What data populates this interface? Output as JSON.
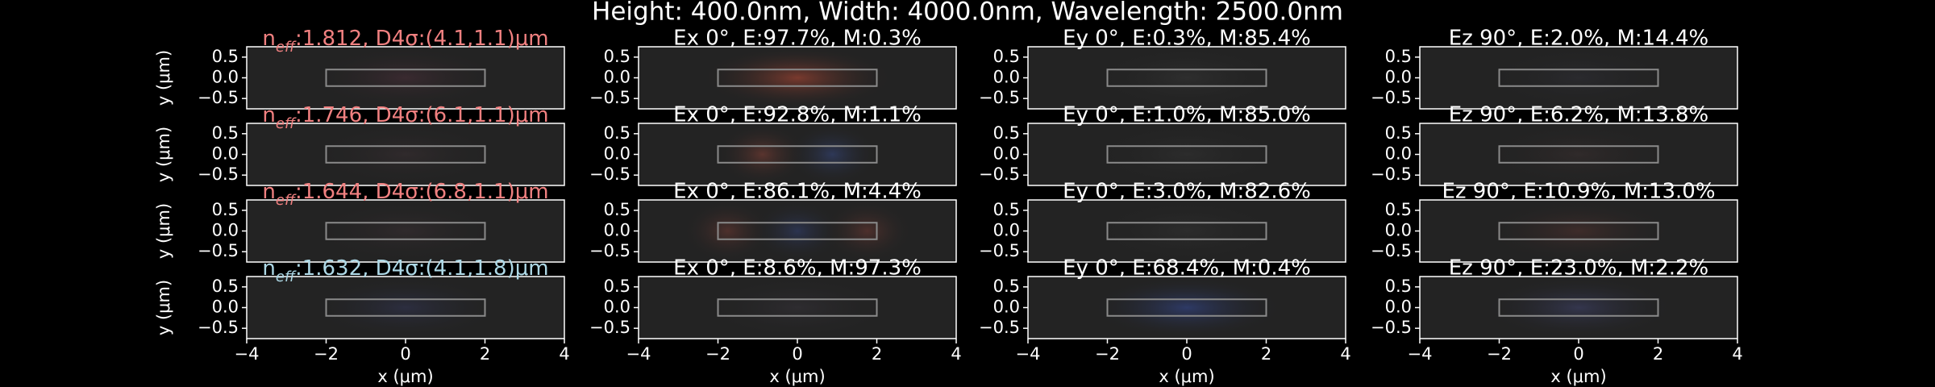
{
  "suptitle": "Height: 400.0nm, Width: 4000.0nm, Wavelength: 2500.0nm",
  "chart_data": [
    {
      "type": "heatmap",
      "title": {
        "base": "n",
        "sub": "eff",
        "text": ":1.812, D4σ:(4.1,1.1)μm"
      },
      "title_color": "#f08080",
      "ylabel": "y (μm)",
      "field": [
        "#3a2a30"
      ],
      "xlim": [
        -4,
        4
      ],
      "ylim": [
        -0.75,
        0.75
      ],
      "yticks": [
        0.5,
        {
          "value": 0,
          "label": "0.0"
        },
        {
          "value": -0.5,
          "label": "−0.5"
        }
      ],
      "waveguide": {
        "x": [
          -2,
          2
        ],
        "y": [
          -0.2,
          0.2
        ]
      }
    },
    {
      "type": "heatmap",
      "title": "Ex 0°, E:97.7%, M:0.3%",
      "title_color": "#ffffff",
      "field": [
        "#7a3a2e"
      ],
      "xlim": [
        -4,
        4
      ],
      "ylim": [
        -0.75,
        0.75
      ],
      "yticks": [
        0.5,
        {
          "value": 0,
          "label": "0.0"
        },
        {
          "value": -0.5,
          "label": "−0.5"
        }
      ],
      "waveguide": {
        "x": [
          -2,
          2
        ],
        "y": [
          -0.2,
          0.2
        ]
      }
    },
    {
      "type": "heatmap",
      "title": "Ey 0°, E:0.3%, M:85.4%",
      "title_color": "#ffffff",
      "field": [
        "#2e2e2e"
      ],
      "xlim": [
        -4,
        4
      ],
      "ylim": [
        -0.75,
        0.75
      ],
      "yticks": [
        0.5,
        {
          "value": 0,
          "label": "0.0"
        },
        {
          "value": -0.5,
          "label": "−0.5"
        }
      ],
      "waveguide": {
        "x": [
          -2,
          2
        ],
        "y": [
          -0.2,
          0.2
        ]
      }
    },
    {
      "type": "heatmap",
      "title": "Ez 90°, E:2.0%, M:14.4%",
      "title_color": "#ffffff",
      "field": [
        "#2a2a2e"
      ],
      "xlim": [
        -4,
        4
      ],
      "ylim": [
        -0.75,
        0.75
      ],
      "yticks": [
        0.5,
        {
          "value": 0,
          "label": "0.0"
        },
        {
          "value": -0.5,
          "label": "−0.5"
        }
      ],
      "waveguide": {
        "x": [
          -2,
          2
        ],
        "y": [
          -0.2,
          0.2
        ]
      }
    },
    {
      "type": "heatmap",
      "title": {
        "base": "n",
        "sub": "eff",
        "text": ":1.746, D4σ:(6.1,1.1)μm"
      },
      "title_color": "#f08080",
      "ylabel": "y (μm)",
      "field": [
        "#302a2c"
      ],
      "xlim": [
        -4,
        4
      ],
      "ylim": [
        -0.75,
        0.75
      ],
      "yticks": [
        0.5,
        {
          "value": 0,
          "label": "0.0"
        },
        {
          "value": -0.5,
          "label": "−0.5"
        }
      ],
      "waveguide": {
        "x": [
          -2,
          2
        ],
        "y": [
          -0.2,
          0.2
        ]
      }
    },
    {
      "type": "heatmap",
      "title": "Ex 0°, E:92.8%, M:1.1%",
      "title_color": "#ffffff",
      "field": [
        "#5a342e",
        "#2e3858"
      ],
      "xlim": [
        -4,
        4
      ],
      "ylim": [
        -0.75,
        0.75
      ],
      "yticks": [
        0.5,
        {
          "value": 0,
          "label": "0.0"
        },
        {
          "value": -0.5,
          "label": "−0.5"
        }
      ],
      "waveguide": {
        "x": [
          -2,
          2
        ],
        "y": [
          -0.2,
          0.2
        ]
      }
    },
    {
      "type": "heatmap",
      "title": "Ey 0°, E:1.0%, M:85.0%",
      "title_color": "#ffffff",
      "field": [
        "#2c2c2c"
      ],
      "xlim": [
        -4,
        4
      ],
      "ylim": [
        -0.75,
        0.75
      ],
      "yticks": [
        0.5,
        {
          "value": 0,
          "label": "0.0"
        },
        {
          "value": -0.5,
          "label": "−0.5"
        }
      ],
      "waveguide": {
        "x": [
          -2,
          2
        ],
        "y": [
          -0.2,
          0.2
        ]
      }
    },
    {
      "type": "heatmap",
      "title": "Ez 90°, E:6.2%, M:13.8%",
      "title_color": "#ffffff",
      "field": [
        "#302a2a"
      ],
      "xlim": [
        -4,
        4
      ],
      "ylim": [
        -0.75,
        0.75
      ],
      "yticks": [
        0.5,
        {
          "value": 0,
          "label": "0.0"
        },
        {
          "value": -0.5,
          "label": "−0.5"
        }
      ],
      "waveguide": {
        "x": [
          -2,
          2
        ],
        "y": [
          -0.2,
          0.2
        ]
      }
    },
    {
      "type": "heatmap",
      "title": {
        "base": "n",
        "sub": "eff",
        "text": ":1.644, D4σ:(6.8,1.1)μm"
      },
      "title_color": "#f08080",
      "ylabel": "y (μm)",
      "field": [
        "#302a2c"
      ],
      "xlim": [
        -4,
        4
      ],
      "ylim": [
        -0.75,
        0.75
      ],
      "yticks": [
        0.5,
        {
          "value": 0,
          "label": "0.0"
        },
        {
          "value": -0.5,
          "label": "−0.5"
        }
      ],
      "waveguide": {
        "x": [
          -2,
          2
        ],
        "y": [
          -0.2,
          0.2
        ]
      }
    },
    {
      "type": "heatmap",
      "title": "Ex 0°, E:86.1%, M:4.4%",
      "title_color": "#ffffff",
      "field": [
        "#4e302c",
        "#2c3450",
        "#4e302c"
      ],
      "xlim": [
        -4,
        4
      ],
      "ylim": [
        -0.75,
        0.75
      ],
      "yticks": [
        0.5,
        {
          "value": 0,
          "label": "0.0"
        },
        {
          "value": -0.5,
          "label": "−0.5"
        }
      ],
      "waveguide": {
        "x": [
          -2,
          2
        ],
        "y": [
          -0.2,
          0.2
        ]
      }
    },
    {
      "type": "heatmap",
      "title": "Ey 0°, E:3.0%, M:82.6%",
      "title_color": "#ffffff",
      "field": [
        "#2c2c2c"
      ],
      "xlim": [
        -4,
        4
      ],
      "ylim": [
        -0.75,
        0.75
      ],
      "yticks": [
        0.5,
        {
          "value": 0,
          "label": "0.0"
        },
        {
          "value": -0.5,
          "label": "−0.5"
        }
      ],
      "waveguide": {
        "x": [
          -2,
          2
        ],
        "y": [
          -0.2,
          0.2
        ]
      }
    },
    {
      "type": "heatmap",
      "title": "Ez 90°, E:10.9%, M:13.0%",
      "title_color": "#ffffff",
      "field": [
        "#3e2c2a"
      ],
      "xlim": [
        -4,
        4
      ],
      "ylim": [
        -0.75,
        0.75
      ],
      "yticks": [
        0.5,
        {
          "value": 0,
          "label": "0.0"
        },
        {
          "value": -0.5,
          "label": "−0.5"
        }
      ],
      "waveguide": {
        "x": [
          -2,
          2
        ],
        "y": [
          -0.2,
          0.2
        ]
      }
    },
    {
      "type": "heatmap",
      "title": {
        "base": "n",
        "sub": "eff",
        "text": ":1.632, D4σ:(4.1,1.8)μm"
      },
      "title_color": "#add8e6",
      "ylabel": "y (μm)",
      "xlabel": "x (μm)",
      "field": [
        "#2c2e40"
      ],
      "xlim": [
        -4,
        4
      ],
      "ylim": [
        -0.75,
        0.75
      ],
      "xticks": [
        {
          "value": -4,
          "label": "−4"
        },
        {
          "value": -2,
          "label": "−2"
        },
        0,
        2,
        4
      ],
      "yticks": [
        0.5,
        {
          "value": 0,
          "label": "0.0"
        },
        {
          "value": -0.5,
          "label": "−0.5"
        }
      ],
      "waveguide": {
        "x": [
          -2,
          2
        ],
        "y": [
          -0.2,
          0.2
        ]
      }
    },
    {
      "type": "heatmap",
      "title": "Ex 0°, E:8.6%, M:97.3%",
      "title_color": "#ffffff",
      "xlabel": "x (μm)",
      "field": [
        "#2e2c30"
      ],
      "xlim": [
        -4,
        4
      ],
      "ylim": [
        -0.75,
        0.75
      ],
      "xticks": [
        {
          "value": -4,
          "label": "−4"
        },
        {
          "value": -2,
          "label": "−2"
        },
        0,
        2,
        4
      ],
      "yticks": [
        0.5,
        {
          "value": 0,
          "label": "0.0"
        },
        {
          "value": -0.5,
          "label": "−0.5"
        }
      ],
      "waveguide": {
        "x": [
          -2,
          2
        ],
        "y": [
          -0.2,
          0.2
        ]
      }
    },
    {
      "type": "heatmap",
      "title": "Ey 0°, E:68.4%, M:0.4%",
      "title_color": "#ffffff",
      "xlabel": "x (μm)",
      "field": [
        "#2e3a66"
      ],
      "xlim": [
        -4,
        4
      ],
      "ylim": [
        -0.75,
        0.75
      ],
      "xticks": [
        {
          "value": -4,
          "label": "−4"
        },
        {
          "value": -2,
          "label": "−2"
        },
        0,
        2,
        4
      ],
      "yticks": [
        0.5,
        {
          "value": 0,
          "label": "0.0"
        },
        {
          "value": -0.5,
          "label": "−0.5"
        }
      ],
      "waveguide": {
        "x": [
          -2,
          2
        ],
        "y": [
          -0.2,
          0.2
        ]
      }
    },
    {
      "type": "heatmap",
      "title": "Ez 90°, E:23.0%, M:2.2%",
      "title_color": "#ffffff",
      "xlabel": "x (μm)",
      "field": [
        "#34364e"
      ],
      "xlim": [
        -4,
        4
      ],
      "ylim": [
        -0.75,
        0.75
      ],
      "xticks": [
        {
          "value": -4,
          "label": "−4"
        },
        {
          "value": -2,
          "label": "−2"
        },
        0,
        2,
        4
      ],
      "yticks": [
        0.5,
        {
          "value": 0,
          "label": "0.0"
        },
        {
          "value": -0.5,
          "label": "−0.5"
        }
      ],
      "waveguide": {
        "x": [
          -2,
          2
        ],
        "y": [
          -0.2,
          0.2
        ]
      }
    }
  ]
}
